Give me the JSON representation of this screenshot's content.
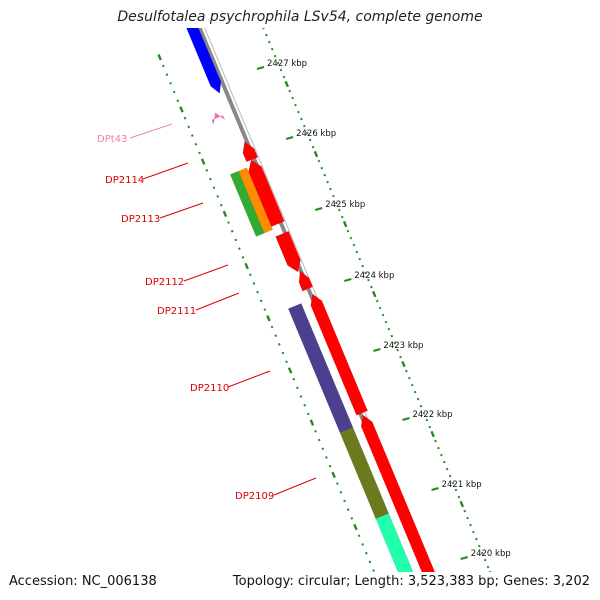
{
  "title": "Desulfotalea psychrophila LSv54, complete genome",
  "footer": {
    "accession": "Accession: NC_006138",
    "summary": "Topology: circular; Length: 3,523,383 bp; Genes: 3,202"
  },
  "scale_labels": [
    "2427 kbp",
    "2426 kbp",
    "2425 kbp",
    "2424 kbp",
    "2423 kbp",
    "2422 kbp",
    "2421 kbp",
    "2420 kbp"
  ],
  "gene_labels": [
    {
      "label": "DPt43",
      "color": "#f080b0"
    },
    {
      "label": "DP2114",
      "color": "#dd0000"
    },
    {
      "label": "DP2113",
      "color": "#dd0000"
    },
    {
      "label": "DP2112",
      "color": "#dd0000"
    },
    {
      "label": "DP2111",
      "color": "#dd0000"
    },
    {
      "label": "DP2110",
      "color": "#dd0000"
    },
    {
      "label": "DP2109",
      "color": "#dd0000"
    }
  ],
  "colors": {
    "forward_cds": "#ff0000",
    "trna": "#ff69b4",
    "backbone": "#888888",
    "tick": "#228B22",
    "blue_feature": "#0000ff",
    "steelblue_feature": "#6a8fc4",
    "green_feature": "#33aa33",
    "orange_feature": "#ff8c00",
    "slateblue_feature": "#4b3f8f",
    "olive_feature": "#6b7a1f",
    "aquamarine_feature": "#22ffaa"
  }
}
